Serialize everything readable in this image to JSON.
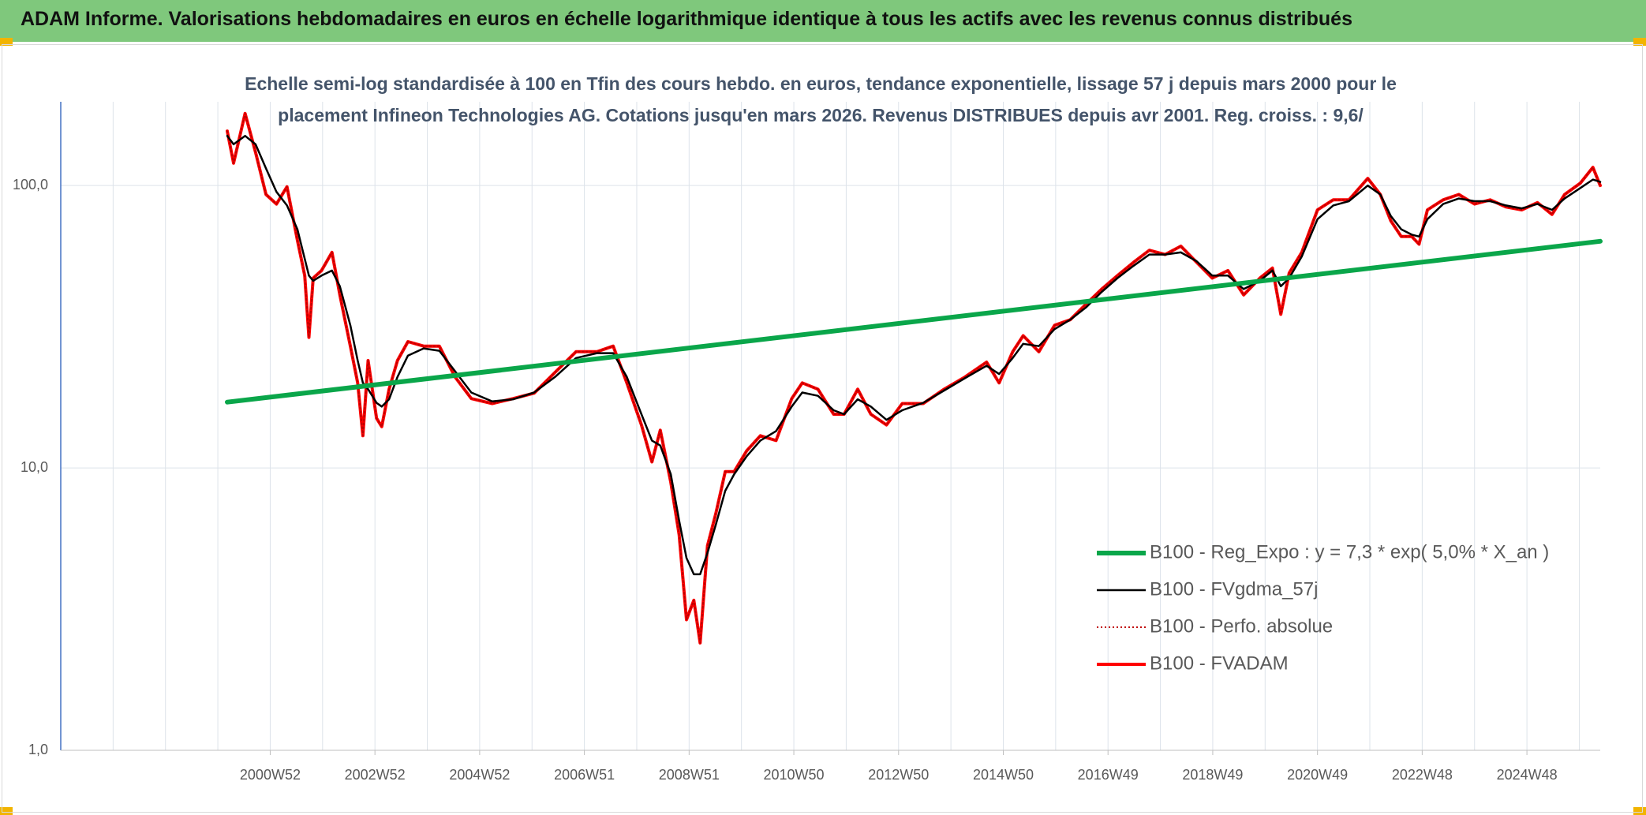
{
  "header": {
    "title": "ADAM Informe. Valorisations hebdomadaires en euros en échelle logarithmique identique à tous les actifs avec les revenus connus distribués"
  },
  "chart_data": {
    "type": "line",
    "title": "Echelle semi-log standardisée à 100 en Tfin des cours hebdo. en euros, tendance exponentielle, lissage 57 j depuis mars 2000 pour le placement Infineon Technologies AG. Cotations jusqu'en mars 2026. Revenus DISTRIBUES depuis avr 2001. Reg. croiss. : 9,6/",
    "log_scale": true,
    "grid": true,
    "legend": "bottom-right",
    "xlim": [
      1997,
      2026.4
    ],
    "ylim": [
      1,
      198
    ],
    "yticks": [
      {
        "value": 1,
        "label": "1,0"
      },
      {
        "value": 10,
        "label": "10,0"
      },
      {
        "value": 100,
        "label": "100,0"
      }
    ],
    "xticks": [
      {
        "value": 2001,
        "label": "2000W52"
      },
      {
        "value": 2003,
        "label": "2002W52"
      },
      {
        "value": 2005,
        "label": "2004W52"
      },
      {
        "value": 2007,
        "label": "2006W51"
      },
      {
        "value": 2009,
        "label": "2008W51"
      },
      {
        "value": 2011,
        "label": "2010W50"
      },
      {
        "value": 2013,
        "label": "2012W50"
      },
      {
        "value": 2015,
        "label": "2014W50"
      },
      {
        "value": 2017,
        "label": "2016W49"
      },
      {
        "value": 2019,
        "label": "2018W49"
      },
      {
        "value": 2021,
        "label": "2020W49"
      },
      {
        "value": 2023,
        "label": "2022W48"
      },
      {
        "value": 2025,
        "label": "2024W48"
      }
    ],
    "xgrid": [
      1998,
      1999,
      2000,
      2001,
      2002,
      2003,
      2004,
      2005,
      2006,
      2007,
      2008,
      2009,
      2010,
      2011,
      2012,
      2013,
      2014,
      2015,
      2016,
      2017,
      2018,
      2019,
      2020,
      2021,
      2022,
      2023,
      2024,
      2025,
      2026
    ],
    "x": [
      2000.18,
      2000.3,
      2000.52,
      2000.72,
      2000.92,
      2001.12,
      2001.32,
      2001.52,
      2001.66,
      2001.74,
      2001.82,
      2001.98,
      2002.18,
      2002.33,
      2002.53,
      2002.67,
      2002.77,
      2002.87,
      2003.03,
      2003.13,
      2003.27,
      2003.43,
      2003.63,
      2003.93,
      2004.23,
      2004.53,
      2004.84,
      2005.24,
      2005.64,
      2006.04,
      2006.44,
      2006.84,
      2007.24,
      2007.55,
      2007.81,
      2008.09,
      2008.29,
      2008.45,
      2008.65,
      2008.81,
      2008.95,
      2009.09,
      2009.21,
      2009.35,
      2009.51,
      2009.69,
      2009.86,
      2010.1,
      2010.36,
      2010.66,
      2010.96,
      2011.16,
      2011.46,
      2011.76,
      2011.96,
      2012.22,
      2012.47,
      2012.77,
      2013.07,
      2013.47,
      2013.87,
      2014.27,
      2014.68,
      2014.92,
      2015.18,
      2015.38,
      2015.68,
      2015.98,
      2016.28,
      2016.58,
      2016.88,
      2017.18,
      2017.49,
      2017.79,
      2018.09,
      2018.39,
      2018.69,
      2018.99,
      2019.29,
      2019.59,
      2019.9,
      2020.14,
      2020.3,
      2020.46,
      2020.7,
      2021.0,
      2021.3,
      2021.6,
      2021.96,
      2022.2,
      2022.4,
      2022.6,
      2022.8,
      2022.94,
      2023.1,
      2023.4,
      2023.7,
      2024.0,
      2024.3,
      2024.6,
      2024.9,
      2025.2,
      2025.48,
      2025.72,
      2026.02,
      2026.26,
      2026.4
    ],
    "series": [
      {
        "name": "B100 - Reg_Expo : y = 7,3 * exp( 5,0% *  X_an )",
        "color": "#0aa64a",
        "x": [
          2000.18,
          2026.4
        ],
        "values": [
          17.1,
          63.5
        ]
      },
      {
        "name": "B100 - FVgdma_57j",
        "color": "#000000",
        "values": [
          150,
          140,
          150,
          140,
          115,
          95,
          85,
          70,
          55,
          48,
          46,
          48,
          50,
          44,
          32,
          24,
          20,
          19,
          17,
          16.5,
          17.5,
          21,
          25,
          26.5,
          26,
          22,
          18.5,
          17.2,
          17.5,
          18.5,
          21,
          24.5,
          25.5,
          25.5,
          21,
          15.5,
          12.5,
          12,
          9.5,
          6.5,
          4.8,
          4.2,
          4.2,
          5,
          6.3,
          8.3,
          9.5,
          11,
          12.5,
          13.5,
          16.5,
          18.5,
          18,
          16,
          15.5,
          17.5,
          16.5,
          14.8,
          16,
          17,
          18.8,
          20.8,
          23,
          21.5,
          24.5,
          27.5,
          27,
          31,
          33.5,
          37,
          42,
          47,
          52,
          57,
          57,
          58,
          54,
          48,
          48,
          43,
          46,
          50,
          44,
          47,
          56,
          76,
          85,
          88,
          100,
          93,
          78,
          70,
          67,
          66,
          76,
          86,
          90,
          88,
          88,
          85,
          83,
          86,
          82,
          90,
          98,
          105,
          103
        ]
      },
      {
        "name": "B100 - Perfo. absolue",
        "color": "#c00000",
        "dash": "dotted",
        "values": [
          156,
          120,
          180,
          131,
          93,
          86,
          99,
          64,
          48,
          29,
          47,
          50,
          58,
          41,
          27,
          20,
          13,
          24,
          15,
          14,
          19,
          24,
          28,
          27,
          27,
          21,
          17.6,
          16.9,
          17.6,
          18.4,
          21.8,
          25.8,
          25.8,
          27,
          20,
          14.2,
          10.5,
          13.6,
          8.9,
          5.8,
          2.9,
          3.4,
          2.4,
          5.3,
          6.9,
          9.7,
          9.7,
          11.5,
          13,
          12.5,
          17.6,
          20,
          19,
          15.5,
          15.5,
          19,
          15.5,
          14.2,
          16.9,
          16.9,
          19,
          21,
          23.7,
          20,
          25.8,
          29.4,
          25.8,
          32,
          33.5,
          38,
          43,
          48,
          53.5,
          59,
          57,
          61,
          53.5,
          47,
          50,
          41,
          47,
          51,
          35,
          49,
          58,
          82,
          89,
          89,
          106,
          93,
          75,
          66,
          66,
          62,
          82,
          89,
          93,
          86,
          89,
          84,
          82,
          87,
          79,
          93,
          102,
          116,
          100
        ]
      },
      {
        "name": "B100 - FVADAM",
        "color": "#ff0000",
        "values": [
          156,
          120,
          180,
          131,
          93,
          86,
          99,
          64,
          48,
          29,
          47,
          50,
          58,
          41,
          27,
          20,
          13,
          24,
          15,
          14,
          19,
          24,
          28,
          27,
          27,
          21,
          17.6,
          16.9,
          17.6,
          18.4,
          21.8,
          25.8,
          25.8,
          27,
          20,
          14.2,
          10.5,
          13.6,
          8.9,
          5.8,
          2.9,
          3.4,
          2.4,
          5.3,
          6.9,
          9.7,
          9.7,
          11.5,
          13,
          12.5,
          17.6,
          20,
          19,
          15.5,
          15.5,
          19,
          15.5,
          14.2,
          16.9,
          16.9,
          19,
          21,
          23.7,
          20,
          25.8,
          29.4,
          25.8,
          32,
          33.5,
          38,
          43,
          48,
          53.5,
          59,
          57,
          61,
          53.5,
          47,
          50,
          41,
          47,
          51,
          35,
          49,
          58,
          82,
          89,
          89,
          106,
          93,
          75,
          66,
          66,
          62,
          82,
          89,
          93,
          86,
          89,
          84,
          82,
          87,
          79,
          93,
          102,
          116,
          100
        ]
      }
    ]
  }
}
